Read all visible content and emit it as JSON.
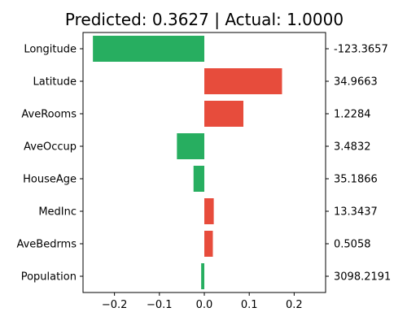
{
  "chart_data": {
    "type": "bar",
    "orientation": "horizontal",
    "title": "Predicted: 0.3627 | Actual: 1.0000",
    "xlabel": "",
    "ylabel": "",
    "xlim": [
      -0.27,
      0.27
    ],
    "xticks": [
      "−0.2",
      "−0.1",
      "0.0",
      "0.1",
      "0.2"
    ],
    "xtick_values": [
      -0.2,
      -0.1,
      0.0,
      0.1,
      0.2
    ],
    "categories": [
      "Longitude",
      "Latitude",
      "AveRooms",
      "AveOccup",
      "HouseAge",
      "MedInc",
      "AveBedrms",
      "Population"
    ],
    "values": [
      -0.248,
      0.173,
      0.087,
      -0.061,
      -0.024,
      0.021,
      0.019,
      -0.007
    ],
    "feature_values": [
      "-123.3657",
      "34.9663",
      "1.2284",
      "3.4832",
      "35.1866",
      "13.3437",
      "0.5058",
      "3098.2191"
    ],
    "colors": {
      "positive": "#e74c3c",
      "negative": "#27ae60"
    },
    "grid": false,
    "legend": "none"
  }
}
